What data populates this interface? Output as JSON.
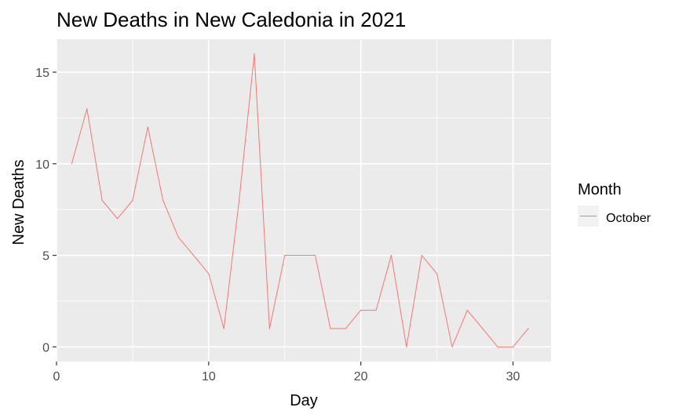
{
  "chart_data": {
    "type": "line",
    "title": "New Deaths in New Caledonia in 2021",
    "xlabel": "Day",
    "ylabel": "New Deaths",
    "xlim": [
      0,
      32.5
    ],
    "ylim": [
      -0.8,
      16.8
    ],
    "x_ticks": [
      0,
      10,
      20,
      30
    ],
    "y_ticks": [
      0,
      5,
      10,
      15
    ],
    "grid": true,
    "legend": {
      "title": "Month",
      "position": "right"
    },
    "series": [
      {
        "name": "October",
        "color": "#F8766D",
        "x": [
          1,
          2,
          3,
          4,
          5,
          6,
          7,
          8,
          9,
          10,
          11,
          12,
          13,
          14,
          15,
          16,
          17,
          18,
          19,
          20,
          21,
          22,
          23,
          24,
          25,
          26,
          27,
          28,
          29,
          30,
          31
        ],
        "values": [
          10,
          13,
          8,
          7,
          8,
          12,
          8,
          6,
          5,
          4,
          1,
          8,
          16,
          1,
          5,
          5,
          5,
          1,
          1,
          2,
          2,
          5,
          0,
          5,
          4,
          0,
          2,
          1,
          0,
          0,
          1
        ]
      }
    ]
  },
  "colors": {
    "panel_background": "#EBEBEB",
    "grid_major": "#FFFFFF",
    "tick_label": "#4D4D4D",
    "series": "#F8766D"
  }
}
